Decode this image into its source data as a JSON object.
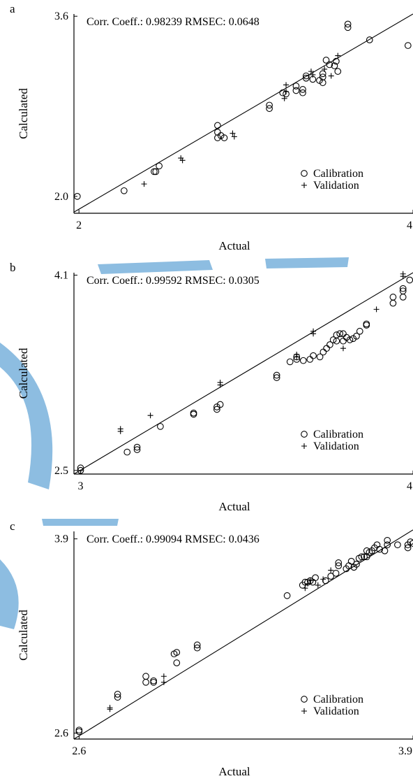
{
  "watermark": {
    "color": "#2f86c8",
    "opacity": 0.55
  },
  "chart_data": [
    {
      "type": "scatter",
      "panel_label": "a",
      "annotation": "Corr. Coeff.: 0.98239  RMSEC: 0.0648",
      "xlabel": "Actual",
      "ylabel": "Calculated",
      "xlim": [
        1.97,
        4.0
      ],
      "ylim": [
        1.85,
        3.62
      ],
      "xticks": [
        {
          "value": 2,
          "label": "2"
        },
        {
          "value": 4,
          "label": "4"
        }
      ],
      "yticks": [
        {
          "value": 2.0,
          "label": "2.0"
        },
        {
          "value": 3.6,
          "label": "3.6"
        }
      ],
      "fit_line": [
        [
          1.97,
          1.86
        ],
        [
          4.0,
          3.62
        ]
      ],
      "legend": {
        "placement": "bottom-right",
        "entries": [
          "Calibration",
          "Validation"
        ]
      },
      "series": [
        {
          "name": "Calibration",
          "marker": "circle",
          "points": [
            [
              1.99,
              2.0
            ],
            [
              2.27,
              2.05
            ],
            [
              2.45,
              2.22
            ],
            [
              2.46,
              2.22
            ],
            [
              2.48,
              2.27
            ],
            [
              2.83,
              2.63
            ],
            [
              2.83,
              2.52
            ],
            [
              2.83,
              2.57
            ],
            [
              2.85,
              2.54
            ],
            [
              2.87,
              2.52
            ],
            [
              3.14,
              2.81
            ],
            [
              3.14,
              2.78
            ],
            [
              3.22,
              2.92
            ],
            [
              3.24,
              2.91
            ],
            [
              3.3,
              2.94
            ],
            [
              3.3,
              2.98
            ],
            [
              3.34,
              2.95
            ],
            [
              3.34,
              2.92
            ],
            [
              3.36,
              3.07
            ],
            [
              3.36,
              3.05
            ],
            [
              3.4,
              3.04
            ],
            [
              3.44,
              3.03
            ],
            [
              3.46,
              3.06
            ],
            [
              3.46,
              3.01
            ],
            [
              3.46,
              3.09
            ],
            [
              3.48,
              3.21
            ],
            [
              3.5,
              3.17
            ],
            [
              3.53,
              3.16
            ],
            [
              3.54,
              3.2
            ],
            [
              3.55,
              3.11
            ],
            [
              3.61,
              3.53
            ],
            [
              3.61,
              3.5
            ],
            [
              3.74,
              3.39
            ],
            [
              3.97,
              3.34
            ]
          ]
        },
        {
          "name": "Validation",
          "marker": "plus",
          "points": [
            [
              2.39,
              2.11
            ],
            [
              2.61,
              2.34
            ],
            [
              2.62,
              2.32
            ],
            [
              2.92,
              2.56
            ],
            [
              2.93,
              2.53
            ],
            [
              3.23,
              2.87
            ],
            [
              3.24,
              2.93
            ],
            [
              3.24,
              2.99
            ],
            [
              3.39,
              3.11
            ],
            [
              3.4,
              3.08
            ],
            [
              3.47,
              3.13
            ],
            [
              3.51,
              3.07
            ],
            [
              3.55,
              3.25
            ]
          ]
        }
      ]
    },
    {
      "type": "scatter",
      "panel_label": "b",
      "annotation": "Corr. Coeff.: 0.99592  RMSEC: 0.0305",
      "xlabel": "Actual",
      "ylabel": "Calculated",
      "xlim": [
        2.98,
        4.0
      ],
      "ylim": [
        2.47,
        4.12
      ],
      "xticks": [
        {
          "value": 3,
          "label": "3"
        },
        {
          "value": 4,
          "label": "4"
        }
      ],
      "yticks": [
        {
          "value": 2.5,
          "label": "2.5"
        },
        {
          "value": 4.1,
          "label": "4.1"
        }
      ],
      "fit_line": [
        [
          2.98,
          2.47
        ],
        [
          4.0,
          4.12
        ]
      ],
      "legend": {
        "placement": "bottom-right",
        "entries": [
          "Calibration",
          "Validation"
        ]
      },
      "series": [
        {
          "name": "Calibration",
          "marker": "circle",
          "points": [
            [
              3.0,
              2.5
            ],
            [
              3.0,
              2.52
            ],
            [
              3.14,
              2.65
            ],
            [
              3.17,
              2.69
            ],
            [
              3.17,
              2.67
            ],
            [
              3.24,
              2.86
            ],
            [
              3.34,
              2.97
            ],
            [
              3.34,
              2.96
            ],
            [
              3.41,
              3.02
            ],
            [
              3.41,
              3.0
            ],
            [
              3.42,
              3.04
            ],
            [
              3.59,
              3.28
            ],
            [
              3.59,
              3.26
            ],
            [
              3.63,
              3.39
            ],
            [
              3.65,
              3.41
            ],
            [
              3.65,
              3.43
            ],
            [
              3.67,
              3.4
            ],
            [
              3.69,
              3.41
            ],
            [
              3.7,
              3.44
            ],
            [
              3.72,
              3.43
            ],
            [
              3.73,
              3.47
            ],
            [
              3.74,
              3.5
            ],
            [
              3.75,
              3.53
            ],
            [
              3.76,
              3.57
            ],
            [
              3.77,
              3.61
            ],
            [
              3.77,
              3.56
            ],
            [
              3.78,
              3.62
            ],
            [
              3.79,
              3.62
            ],
            [
              3.79,
              3.56
            ],
            [
              3.8,
              3.59
            ],
            [
              3.81,
              3.57
            ],
            [
              3.82,
              3.58
            ],
            [
              3.83,
              3.6
            ],
            [
              3.84,
              3.64
            ],
            [
              3.86,
              3.69
            ],
            [
              3.86,
              3.7
            ],
            [
              3.94,
              3.87
            ],
            [
              3.94,
              3.92
            ],
            [
              3.97,
              3.92
            ],
            [
              3.97,
              3.99
            ],
            [
              3.97,
              3.97
            ],
            [
              3.99,
              4.06
            ]
          ]
        },
        {
          "name": "Validation",
          "marker": "plus",
          "points": [
            [
              3.12,
              2.82
            ],
            [
              3.12,
              2.84
            ],
            [
              3.21,
              2.95
            ],
            [
              3.42,
              3.2
            ],
            [
              3.42,
              3.22
            ],
            [
              3.65,
              3.43
            ],
            [
              3.65,
              3.45
            ],
            [
              3.7,
              3.62
            ],
            [
              3.7,
              3.64
            ],
            [
              3.79,
              3.5
            ],
            [
              3.89,
              3.82
            ],
            [
              3.97,
              4.09
            ],
            [
              3.97,
              4.11
            ]
          ]
        }
      ]
    },
    {
      "type": "scatter",
      "panel_label": "c",
      "annotation": "Corr. Coeff.: 0.99094  RMSEC: 0.0436",
      "xlabel": "Actual",
      "ylabel": "Calculated",
      "xlim": [
        2.58,
        3.9
      ],
      "ylim": [
        2.56,
        3.95
      ],
      "xticks": [
        {
          "value": 2.6,
          "label": "2.6"
        },
        {
          "value": 3.9,
          "label": "3.9"
        }
      ],
      "yticks": [
        {
          "value": 2.6,
          "label": "2.6"
        },
        {
          "value": 3.9,
          "label": "3.9"
        }
      ],
      "fit_line": [
        [
          2.58,
          2.56
        ],
        [
          3.9,
          3.96
        ]
      ],
      "legend": {
        "placement": "bottom-right",
        "entries": [
          "Calibration",
          "Validation"
        ]
      },
      "series": [
        {
          "name": "Calibration",
          "marker": "circle",
          "points": [
            [
              2.6,
              2.61
            ],
            [
              2.6,
              2.62
            ],
            [
              2.75,
              2.84
            ],
            [
              2.75,
              2.86
            ],
            [
              2.86,
              2.94
            ],
            [
              2.86,
              2.98
            ],
            [
              2.89,
              2.94
            ],
            [
              2.89,
              2.95
            ],
            [
              2.97,
              3.13
            ],
            [
              2.98,
              3.07
            ],
            [
              2.98,
              3.14
            ],
            [
              3.06,
              3.17
            ],
            [
              3.06,
              3.19
            ],
            [
              3.41,
              3.52
            ],
            [
              3.47,
              3.59
            ],
            [
              3.48,
              3.61
            ],
            [
              3.49,
              3.61
            ],
            [
              3.5,
              3.62
            ],
            [
              3.51,
              3.61
            ],
            [
              3.52,
              3.64
            ],
            [
              3.56,
              3.62
            ],
            [
              3.58,
              3.65
            ],
            [
              3.6,
              3.67
            ],
            [
              3.61,
              3.72
            ],
            [
              3.61,
              3.74
            ],
            [
              3.64,
              3.7
            ],
            [
              3.65,
              3.72
            ],
            [
              3.66,
              3.75
            ],
            [
              3.67,
              3.71
            ],
            [
              3.68,
              3.73
            ],
            [
              3.69,
              3.77
            ],
            [
              3.7,
              3.78
            ],
            [
              3.71,
              3.78
            ],
            [
              3.72,
              3.78
            ],
            [
              3.72,
              3.82
            ],
            [
              3.73,
              3.81
            ],
            [
              3.74,
              3.82
            ],
            [
              3.75,
              3.84
            ],
            [
              3.76,
              3.86
            ],
            [
              3.77,
              3.83
            ],
            [
              3.79,
              3.82
            ],
            [
              3.8,
              3.86
            ],
            [
              3.8,
              3.89
            ],
            [
              3.84,
              3.86
            ],
            [
              3.88,
              3.84
            ],
            [
              3.88,
              3.86
            ],
            [
              3.89,
              3.88
            ],
            [
              3.9,
              3.87
            ]
          ]
        },
        {
          "name": "Validation",
          "marker": "plus",
          "points": [
            [
              2.72,
              2.76
            ],
            [
              2.72,
              2.77
            ],
            [
              2.93,
              2.98
            ],
            [
              2.93,
              2.94
            ],
            [
              3.48,
              3.57
            ],
            [
              3.49,
              3.6
            ],
            [
              3.5,
              3.62
            ],
            [
              3.53,
              3.59
            ],
            [
              3.55,
              3.63
            ],
            [
              3.58,
              3.69
            ]
          ]
        }
      ]
    }
  ]
}
